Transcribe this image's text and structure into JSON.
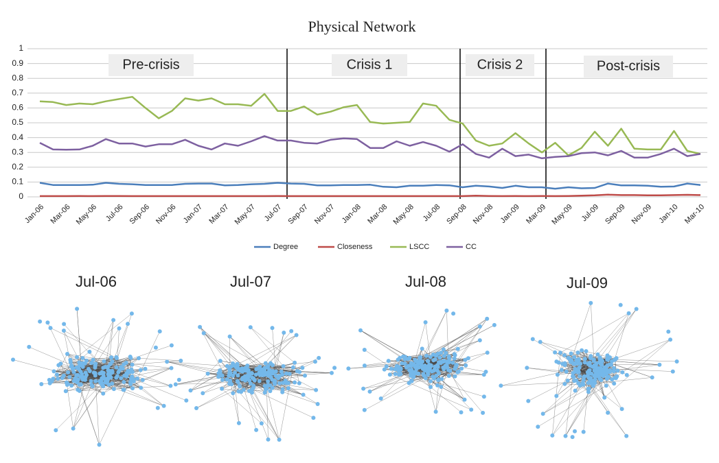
{
  "chart_data": {
    "type": "line",
    "title": "Physical Network",
    "categories": [
      "Jan-06",
      null,
      "Mar-06",
      null,
      "May-06",
      null,
      "Jul-06",
      null,
      "Sep-06",
      null,
      "Nov-06",
      null,
      "Jan-07",
      null,
      "Mar-07",
      null,
      "May-07",
      null,
      "Jul-07",
      null,
      "Sep-07",
      null,
      "Nov-07",
      null,
      "Jan-08",
      null,
      "Mar-08",
      null,
      "May-08",
      null,
      "Jul-08",
      null,
      "Sep-08",
      null,
      "Nov-08",
      null,
      "Jan-09",
      null,
      "Mar-09",
      null,
      "May-09",
      null,
      "Jul-09",
      null,
      "Sep-09",
      null,
      "Nov-09",
      null,
      "Jan-10",
      null,
      "Mar-10"
    ],
    "series": [
      {
        "name": "Degree",
        "color": "#4a7ebb",
        "values": [
          0.095,
          0.08,
          0.08,
          0.08,
          0.082,
          0.095,
          0.088,
          0.085,
          0.08,
          0.08,
          0.08,
          0.088,
          0.09,
          0.09,
          0.078,
          0.08,
          0.085,
          0.088,
          0.095,
          0.09,
          0.088,
          0.078,
          0.078,
          0.08,
          0.08,
          0.082,
          0.068,
          0.065,
          0.075,
          0.075,
          0.08,
          0.078,
          0.065,
          0.075,
          0.07,
          0.06,
          0.075,
          0.065,
          0.065,
          0.055,
          0.065,
          0.058,
          0.06,
          0.09,
          0.078,
          0.078,
          0.075,
          0.068,
          0.07,
          0.09,
          0.08
        ]
      },
      {
        "name": "Closeness",
        "color": "#be4b48",
        "values": [
          0.005,
          0.005,
          0.005,
          0.006,
          0.005,
          0.006,
          0.006,
          0.005,
          0.005,
          0.005,
          0.005,
          0.005,
          0.005,
          0.005,
          0.005,
          0.005,
          0.005,
          0.005,
          0.006,
          0.005,
          0.005,
          0.005,
          0.005,
          0.005,
          0.005,
          0.005,
          0.005,
          0.005,
          0.005,
          0.005,
          0.005,
          0.005,
          0.005,
          0.008,
          0.006,
          0.005,
          0.006,
          0.005,
          0.006,
          0.005,
          0.006,
          0.008,
          0.01,
          0.015,
          0.012,
          0.012,
          0.01,
          0.01,
          0.012,
          0.014,
          0.012
        ]
      },
      {
        "name": "LSCC",
        "color": "#98b954",
        "values": [
          0.645,
          0.64,
          0.62,
          0.63,
          0.625,
          0.645,
          0.66,
          0.675,
          0.6,
          0.53,
          0.58,
          0.665,
          0.65,
          0.665,
          0.625,
          0.625,
          0.615,
          0.695,
          0.58,
          0.58,
          0.61,
          0.555,
          0.575,
          0.605,
          0.62,
          0.505,
          0.495,
          0.5,
          0.505,
          0.63,
          0.615,
          0.52,
          0.495,
          0.38,
          0.345,
          0.36,
          0.43,
          0.36,
          0.3,
          0.365,
          0.28,
          0.33,
          0.44,
          0.345,
          0.46,
          0.325,
          0.32,
          0.32,
          0.445,
          0.31,
          0.29
        ]
      },
      {
        "name": "CC",
        "color": "#7d60a0",
        "values": [
          0.365,
          0.32,
          0.318,
          0.32,
          0.345,
          0.39,
          0.36,
          0.36,
          0.34,
          0.355,
          0.355,
          0.385,
          0.345,
          0.32,
          0.36,
          0.345,
          0.375,
          0.41,
          0.38,
          0.38,
          0.365,
          0.36,
          0.385,
          0.395,
          0.39,
          0.33,
          0.33,
          0.375,
          0.345,
          0.37,
          0.345,
          0.305,
          0.355,
          0.29,
          0.265,
          0.325,
          0.275,
          0.285,
          0.26,
          0.27,
          0.275,
          0.295,
          0.3,
          0.28,
          0.31,
          0.265,
          0.265,
          0.29,
          0.325,
          0.275,
          0.29
        ]
      }
    ],
    "ylim": [
      0,
      1
    ],
    "yticks": [
      0,
      0.1,
      0.2,
      0.3,
      0.4,
      0.5,
      0.6,
      0.7,
      0.8,
      0.9,
      1
    ],
    "grid": true,
    "annotations": [
      "Pre-crisis",
      "Crisis 1",
      "Crisis 2",
      "Post-crisis"
    ],
    "legend": "bottom"
  },
  "snapshots": [
    "Jul-06",
    "Jul-07",
    "Jul-08",
    "Jul-09"
  ]
}
